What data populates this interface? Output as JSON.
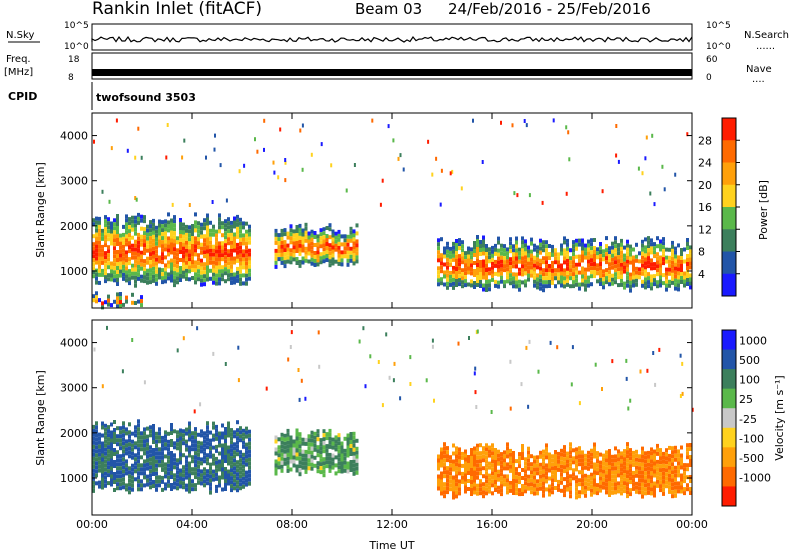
{
  "header": {
    "station": "Rankin Inlet (fitACF)",
    "beam": "Beam 03",
    "date_range": "24/Feb/2016 - 25/Feb/2016"
  },
  "labels": {
    "nsky": "N.Sky",
    "nsearch": "N.Search",
    "freq": "Freq.",
    "freq_unit": "[MHz]",
    "nave": "Nave",
    "cpid": "CPID",
    "cpid_value": "twofsound 3503",
    "dots": "......",
    "dots_short": "...."
  },
  "colors": {
    "power_scale": [
      "#1a1aff",
      "#2255a8",
      "#3c7f5c",
      "#5ab84a",
      "#ffd21e",
      "#ffa00a",
      "#ff6a00",
      "#ff1c00"
    ],
    "velocity_scale": [
      "#1a1aff",
      "#2255a8",
      "#3c7f5c",
      "#5ab84a",
      "#c8c8c8",
      "#ffd21e",
      "#ffa00a",
      "#ff6a00",
      "#ff1c00"
    ]
  },
  "chart_data": [
    {
      "type": "line",
      "panel": "nsky-nsearch",
      "yticks_left": [
        "10^5",
        "10^0"
      ],
      "yticks_right": [
        "10^5",
        "10^0"
      ],
      "x_range_hours": [
        0,
        24
      ]
    },
    {
      "type": "line",
      "panel": "freq-nave",
      "yticks_left": [
        "18",
        "8"
      ],
      "yticks_right": [
        "60",
        "0"
      ],
      "x_range_hours": [
        0,
        24
      ]
    },
    {
      "type": "heatmap",
      "panel": "power",
      "ylabel": "Slant Range [km]",
      "ylim": [
        180,
        4500
      ],
      "yticks": [
        "1000",
        "2000",
        "3000",
        "4000"
      ],
      "colorbar_label": "Power [dB]",
      "colorbar_ticks": [
        "4",
        "8",
        "12",
        "16",
        "20",
        "24",
        "28"
      ],
      "xlabel": "Time UT",
      "xticks": [
        "00:00",
        "04:00",
        "08:00",
        "12:00",
        "16:00",
        "20:00",
        "00:00"
      ],
      "regions": [
        {
          "t0": 0.0,
          "t1": 6.3,
          "r0": 700,
          "r1": 2300,
          "core": 24
        },
        {
          "t0": 7.3,
          "t1": 10.6,
          "r0": 1100,
          "r1": 2100,
          "core": 18
        },
        {
          "t0": 13.8,
          "t1": 24.0,
          "r0": 600,
          "r1": 1800,
          "core": 24
        },
        {
          "t0": 0.0,
          "t1": 2.0,
          "r0": 200,
          "r1": 550,
          "core": 28
        }
      ]
    },
    {
      "type": "heatmap",
      "panel": "velocity",
      "ylabel": "Slant Range [km]",
      "ylim": [
        180,
        4500
      ],
      "yticks": [
        "1000",
        "2000",
        "3000",
        "4000"
      ],
      "colorbar_label": "Velocity [m s⁻¹]",
      "colorbar_ticks": [
        "1000",
        "500",
        "100",
        "25",
        "-25",
        "-100",
        "-500",
        "-1000"
      ],
      "xlabel": "Time UT",
      "xticks": [
        "00:00",
        "04:00",
        "08:00",
        "12:00",
        "16:00",
        "20:00",
        "00:00"
      ],
      "regions": [
        {
          "t0": 0.0,
          "t1": 6.3,
          "r0": 700,
          "r1": 2300,
          "core": 500
        },
        {
          "t0": 7.3,
          "t1": 10.6,
          "r0": 1100,
          "r1": 2100,
          "core": 100
        },
        {
          "t0": 13.8,
          "t1": 24.0,
          "r0": 600,
          "r1": 1800,
          "core": -500
        }
      ]
    }
  ]
}
